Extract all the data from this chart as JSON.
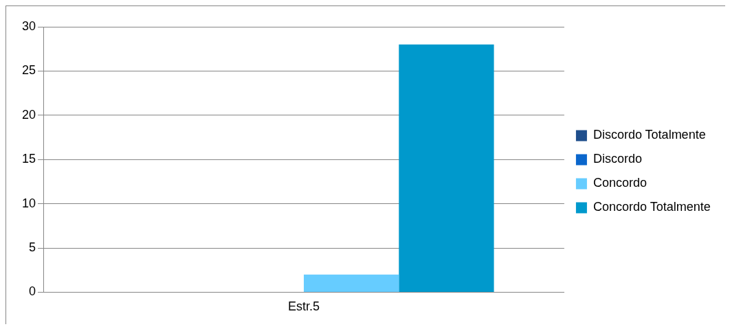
{
  "chart_data": {
    "type": "bar",
    "categories": [
      "Estr.5"
    ],
    "series": [
      {
        "name": "Discordo Totalmente",
        "color": "#1f4e8c",
        "values": [
          0
        ]
      },
      {
        "name": "Discordo",
        "color": "#0a66cc",
        "values": [
          0
        ]
      },
      {
        "name": "Concordo",
        "color": "#66ccff",
        "values": [
          2
        ]
      },
      {
        "name": "Concordo Totalmente",
        "color": "#0099cc",
        "values": [
          28
        ]
      }
    ],
    "ylim": [
      0,
      30
    ],
    "yticks": [
      0,
      5,
      10,
      15,
      20,
      25,
      30
    ],
    "grid": "y",
    "legend": "right"
  }
}
